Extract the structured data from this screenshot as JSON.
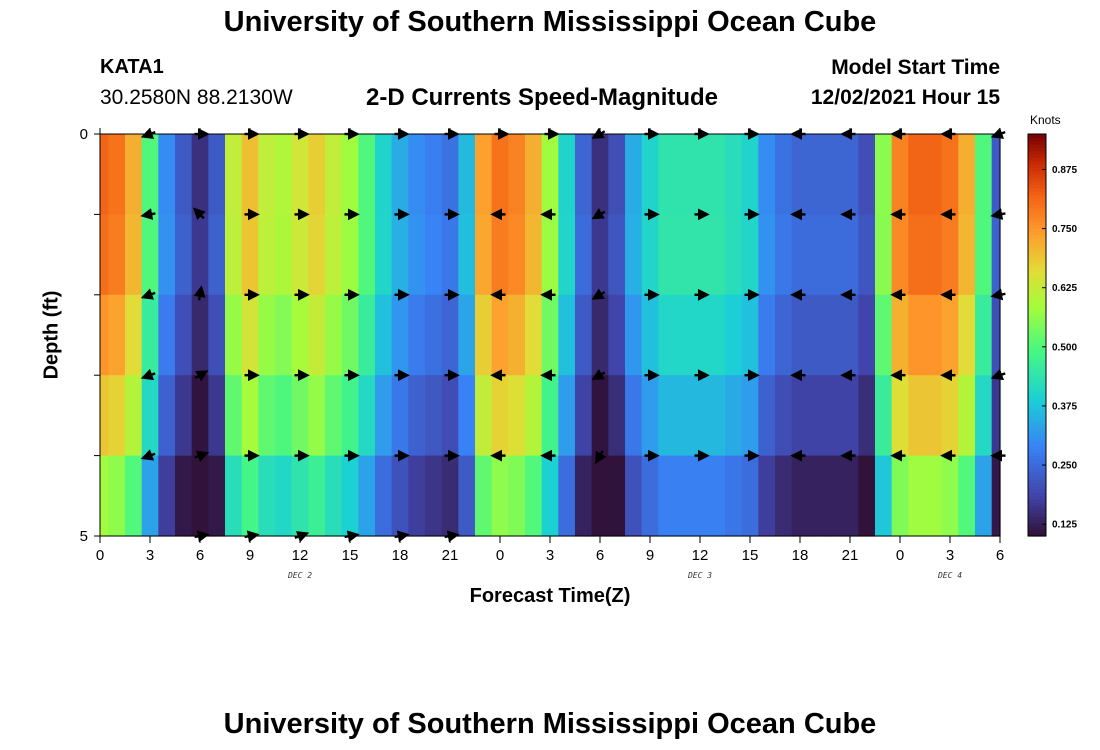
{
  "page": {
    "title": "University of Southern Mississippi Ocean Cube",
    "bottom_title": "University of Southern Mississippi Ocean Cube",
    "station": "KATA1",
    "coords": "30.2580N  88.2130W",
    "chart_title": "2-D Currents Speed-Magnitude",
    "model_start_label": "Model Start Time",
    "model_start_value": "12/02/2021 Hour 15",
    "units": "Knots"
  },
  "chart_data": {
    "type": "heatmap",
    "title": "2-D Currents Speed-Magnitude",
    "xlabel": "Forecast Time(Z)",
    "ylabel": "Depth (ft)",
    "x_start_hour": 0,
    "x_end_hour": 54,
    "x_ticks": [
      {
        "hour": 0,
        "label": "0"
      },
      {
        "hour": 3,
        "label": "3"
      },
      {
        "hour": 6,
        "label": "6"
      },
      {
        "hour": 9,
        "label": "9"
      },
      {
        "hour": 12,
        "label": "12"
      },
      {
        "hour": 15,
        "label": "15"
      },
      {
        "hour": 18,
        "label": "18"
      },
      {
        "hour": 21,
        "label": "21"
      },
      {
        "hour": 24,
        "label": "0"
      },
      {
        "hour": 27,
        "label": "3"
      },
      {
        "hour": 30,
        "label": "6"
      },
      {
        "hour": 33,
        "label": "9"
      },
      {
        "hour": 36,
        "label": "12"
      },
      {
        "hour": 39,
        "label": "15"
      },
      {
        "hour": 42,
        "label": "18"
      },
      {
        "hour": 45,
        "label": "21"
      },
      {
        "hour": 48,
        "label": "0"
      },
      {
        "hour": 51,
        "label": "3"
      },
      {
        "hour": 54,
        "label": "6"
      }
    ],
    "day_labels": [
      {
        "hour": 12,
        "label": "DEC 2"
      },
      {
        "hour": 36,
        "label": "DEC 3"
      },
      {
        "hour": 51,
        "label": "DEC 4"
      }
    ],
    "y_range": [
      0,
      5
    ],
    "y_tick_depths": [
      0,
      1,
      2,
      3,
      4,
      5
    ],
    "y_tick_labels": [
      {
        "depth": 0,
        "label": "0"
      },
      {
        "depth": 5,
        "label": "5"
      }
    ],
    "colorbar": {
      "label": "Knots",
      "min": 0.1,
      "max": 0.95,
      "ticks": [
        "0.125",
        "0.250",
        "0.375",
        "0.500",
        "0.625",
        "0.750",
        "0.875"
      ]
    },
    "speed_knots": {
      "layer_depths_ft": [
        0.5,
        1.5,
        2.5,
        3.5,
        4.5
      ],
      "hours": [
        0,
        1,
        2,
        3,
        4,
        5,
        6,
        7,
        8,
        9,
        10,
        11,
        12,
        13,
        14,
        15,
        16,
        17,
        18,
        19,
        20,
        21,
        22,
        23,
        24,
        25,
        26,
        27,
        28,
        29,
        30,
        31,
        32,
        33,
        34,
        35,
        36,
        37,
        38,
        39,
        40,
        41,
        42,
        43,
        44,
        45,
        46,
        47,
        48,
        49,
        50,
        51,
        52,
        53,
        54
      ],
      "profile": [
        0.82,
        0.8,
        0.72,
        0.5,
        0.3,
        0.22,
        0.15,
        0.22,
        0.62,
        0.7,
        0.62,
        0.6,
        0.64,
        0.68,
        0.62,
        0.58,
        0.5,
        0.4,
        0.34,
        0.3,
        0.28,
        0.26,
        0.36,
        0.74,
        0.8,
        0.78,
        0.72,
        0.58,
        0.4,
        0.24,
        0.15,
        0.2,
        0.34,
        0.4,
        0.44,
        0.44,
        0.44,
        0.44,
        0.42,
        0.4,
        0.3,
        0.26,
        0.24,
        0.24,
        0.24,
        0.24,
        0.2,
        0.56,
        0.78,
        0.82,
        0.82,
        0.8,
        0.72,
        0.5,
        0.22
      ],
      "layer_factor": [
        1.0,
        0.96,
        0.92,
        0.88,
        0.78
      ],
      "layer_offset": [
        0.0,
        0.02,
        0.0,
        -0.03,
        -0.06
      ]
    },
    "vectors": {
      "depths_ft": [
        0,
        1,
        2,
        3,
        4,
        5
      ],
      "hours": [
        3,
        6,
        9,
        12,
        15,
        18,
        21,
        24,
        27,
        30,
        33,
        36,
        39,
        42,
        45,
        48,
        51,
        54
      ],
      "direction_deg": [
        [
          200,
          0,
          0,
          0,
          0,
          0,
          0,
          0,
          0,
          210,
          0,
          0,
          0,
          180,
          180,
          180,
          180,
          200
        ],
        [
          190,
          135,
          0,
          0,
          0,
          0,
          0,
          180,
          180,
          210,
          0,
          0,
          0,
          180,
          180,
          180,
          180,
          190
        ],
        [
          200,
          80,
          0,
          0,
          0,
          0,
          0,
          180,
          180,
          210,
          0,
          0,
          0,
          180,
          180,
          180,
          180,
          190
        ],
        [
          200,
          30,
          0,
          0,
          0,
          0,
          0,
          180,
          180,
          210,
          0,
          0,
          0,
          180,
          180,
          180,
          180,
          200
        ],
        [
          200,
          20,
          0,
          0,
          0,
          0,
          0,
          180,
          180,
          240,
          0,
          0,
          0,
          180,
          180,
          180,
          180,
          180
        ],
        [
          null,
          10,
          10,
          20,
          10,
          10,
          10,
          null,
          null,
          null,
          null,
          null,
          null,
          null,
          null,
          null,
          null,
          null
        ]
      ]
    }
  }
}
